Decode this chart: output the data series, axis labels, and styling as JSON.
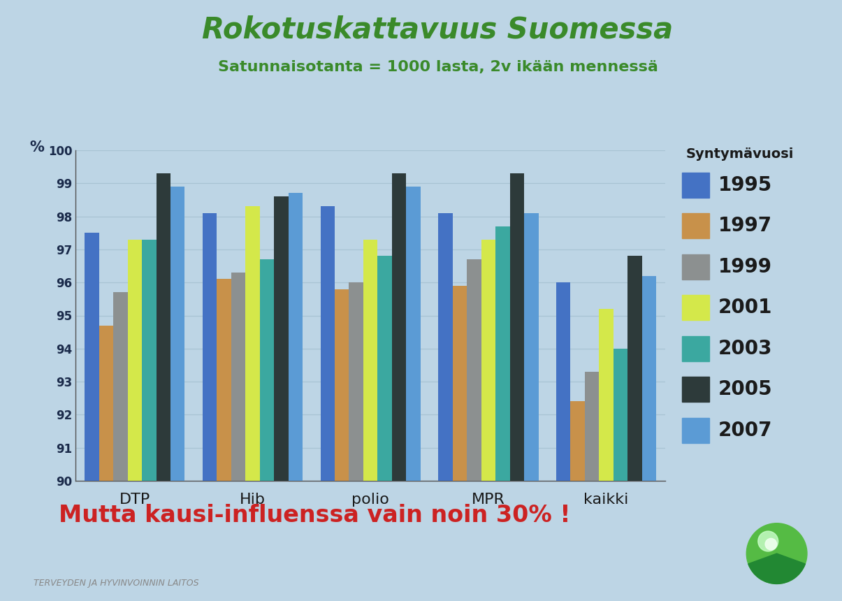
{
  "title": "Rokotuskattavuus Suomessa",
  "subtitle": "Satunnaisotanta = 1000 lasta, 2v ikään mennessä",
  "ylabel": "%",
  "bottom_text": "Mutta kausi-influenssa vain noin 30% !",
  "footer_text": "TERVEYDEN JA HYVINVOINNIN LAITOS",
  "legend_title": "Syntymävuosi",
  "categories": [
    "DTP",
    "Hib",
    "polio",
    "MPR",
    "kaikki"
  ],
  "years": [
    "1995",
    "1997",
    "1999",
    "2001",
    "2003",
    "2005",
    "2007"
  ],
  "colors": [
    "#4472C4",
    "#C8914A",
    "#8C9090",
    "#D4E84A",
    "#3BA8A0",
    "#2D3A3A",
    "#5B9BD5"
  ],
  "data": {
    "DTP": [
      97.5,
      94.7,
      95.7,
      97.3,
      97.3,
      99.3,
      98.9
    ],
    "Hib": [
      98.1,
      96.1,
      96.3,
      98.3,
      96.7,
      98.6,
      98.7
    ],
    "polio": [
      98.3,
      95.8,
      96.0,
      97.3,
      96.8,
      99.3,
      98.9
    ],
    "MPR": [
      98.1,
      95.9,
      96.7,
      97.3,
      97.7,
      99.3,
      98.1
    ],
    "kaikki": [
      96.0,
      92.4,
      93.3,
      95.2,
      94.0,
      96.8,
      96.2
    ]
  },
  "ylim": [
    90,
    100
  ],
  "yticks": [
    90,
    91,
    92,
    93,
    94,
    95,
    96,
    97,
    98,
    99,
    100
  ],
  "background_color": "#BDD5E5",
  "plot_background": "#BDD5E5",
  "title_color": "#3A8A2A",
  "subtitle_color": "#3A8A2A",
  "bottom_text_color": "#CC2222",
  "footer_color": "#888888",
  "grid_color": "#A8C4D4",
  "axes_color": "#555555"
}
